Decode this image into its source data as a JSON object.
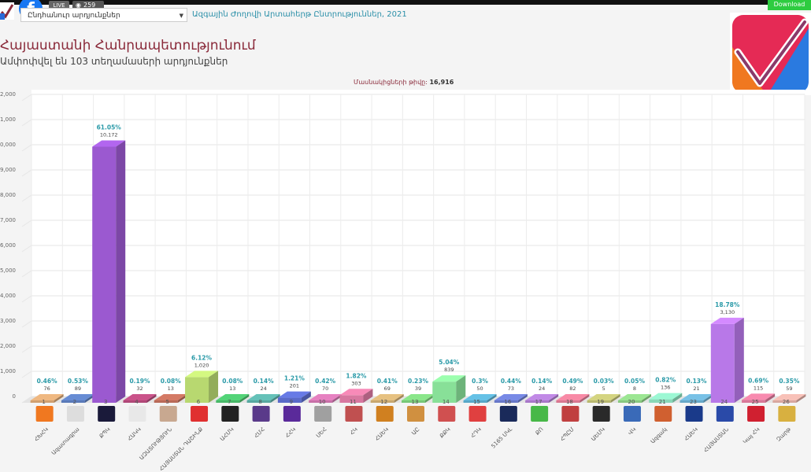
{
  "header": {
    "download_label": "Download",
    "live_label": "LIVE",
    "views": "259",
    "region_select": "Ընդհանուր արդյունքներ",
    "election_title": "Ազգային Ժողովի Արտահերթ Ընտրություններ, 2021",
    "main_title": "Հայաստանի Հանրապետությունում",
    "subtitle": "Ամփոփվել են 103 տեղամասերի արդյունքներ",
    "participants_label": "Մասնակիցների թիվը:",
    "participants_value": "16,916"
  },
  "colors": {
    "title": "#8a2a3a",
    "accent": "#2a8fa8"
  },
  "chart_data": {
    "type": "bar",
    "ylim": [
      0,
      12000
    ],
    "yticks": [
      "0",
      "1,000",
      "2,000",
      "3,000",
      "4,000",
      "5,000",
      "6,000",
      "7,000",
      "8,000",
      "9,000",
      "10,000",
      "11,000",
      "12,000"
    ],
    "grid": true,
    "parties": [
      {
        "num": "1",
        "name": "ՀԽՀԿ",
        "value": 76,
        "label": "76",
        "pct": "0.46%",
        "color": "#d0a070",
        "logo_color": "#f07820"
      },
      {
        "num": "2",
        "name": "Ազատագրա",
        "value": 89,
        "label": "89",
        "pct": "0.53%",
        "color": "#5a7ab8",
        "logo_color": "#dddddd"
      },
      {
        "num": "3",
        "name": "ՔՊԿ",
        "value": 10172,
        "label": "10,172",
        "pct": "61.05%",
        "color": "#9b59d0",
        "logo_color": "#1a1a3a"
      },
      {
        "num": "4",
        "name": "ՀԱԿԿ",
        "value": 32,
        "label": "32",
        "pct": "0.19%",
        "color": "#b04878",
        "logo_color": "#e8e8e8"
      },
      {
        "num": "5",
        "name": "ԱԶԱՏՈՒԹՅՈՒՆ",
        "value": 13,
        "label": "13",
        "pct": "0.08%",
        "color": "#b86a58",
        "logo_color": "#c8a890"
      },
      {
        "num": "6",
        "name": "ՀԱՅԱՍՏԱՆ ԴԱՇԻՆՔ",
        "value": 1020,
        "label": "1,020",
        "pct": "6.12%",
        "color": "#b8d870",
        "logo_color": "#e03030"
      },
      {
        "num": "7",
        "name": "ԱՀՄԿ",
        "value": 13,
        "label": "13",
        "pct": "0.08%",
        "color": "#48b868",
        "logo_color": "#222222"
      },
      {
        "num": "8",
        "name": "ՀՄՀ",
        "value": 24,
        "label": "24",
        "pct": "0.14%",
        "color": "#58a8a0",
        "logo_color": "#5a3a8a"
      },
      {
        "num": "9",
        "name": "ՀՀԿ",
        "value": 201,
        "label": "201",
        "pct": "1.21%",
        "color": "#5a6ac8",
        "logo_color": "#5a2a9a"
      },
      {
        "num": "10",
        "name": "ՍԵՀ",
        "value": 70,
        "label": "70",
        "pct": "0.42%",
        "color": "#c870a8",
        "logo_color": "#a0a0a0"
      },
      {
        "num": "11",
        "name": "ՀԿ",
        "value": 303,
        "label": "303",
        "pct": "1.82%",
        "color": "#d878a0",
        "logo_color": "#c05050"
      },
      {
        "num": "12",
        "name": "ՀԱԵԿ",
        "value": 69,
        "label": "69",
        "pct": "0.41%",
        "color": "#c8a870",
        "logo_color": "#d08020"
      },
      {
        "num": "13",
        "name": "ԱԸ",
        "value": 39,
        "label": "39",
        "pct": "0.23%",
        "color": "#78c878",
        "logo_color": "#d09040"
      },
      {
        "num": "14",
        "name": "ՔՔԿ",
        "value": 839,
        "label": "839",
        "pct": "5.04%",
        "color": "#88e098",
        "logo_color": "#d05050"
      },
      {
        "num": "15",
        "name": "ՀԴԿ",
        "value": 50,
        "label": "50",
        "pct": "0.3%",
        "color": "#58a8c8",
        "logo_color": "#e04040"
      },
      {
        "num": "16",
        "name": "5165 ՍԿԼ",
        "value": 73,
        "label": "73",
        "pct": "0.44%",
        "color": "#6878c8",
        "logo_color": "#1a2a5a"
      },
      {
        "num": "17",
        "name": "ՔՈ",
        "value": 24,
        "label": "24",
        "pct": "0.14%",
        "color": "#a878c8",
        "logo_color": "#48b848"
      },
      {
        "num": "18",
        "name": "ՀՊԸՄ",
        "value": 82,
        "label": "82",
        "pct": "0.49%",
        "color": "#d87890",
        "logo_color": "#c04040"
      },
      {
        "num": "19",
        "name": "ԱԵՄԿ",
        "value": 5,
        "label": "5",
        "pct": "0.03%",
        "color": "#b8b870",
        "logo_color": "#2a2a2a"
      },
      {
        "num": "20",
        "name": "ՎԿ",
        "value": 8,
        "label": "8",
        "pct": "0.05%",
        "color": "#88c880",
        "logo_color": "#3a6ab8"
      },
      {
        "num": "21",
        "name": "Ազգակ",
        "value": 136,
        "label": "136",
        "pct": "0.82%",
        "color": "#88d8b8",
        "logo_color": "#d06030"
      },
      {
        "num": "23",
        "name": "ՀԱԵԿ",
        "value": 21,
        "label": "21",
        "pct": "0.13%",
        "color": "#68a8c8",
        "logo_color": "#1a3a8a"
      },
      {
        "num": "24",
        "name": "ՀԱՅԱՍՏԱՆ",
        "value": 3130,
        "label": "3,130",
        "pct": "18.78%",
        "color": "#b878e8",
        "logo_color": "#2a4aa8"
      },
      {
        "num": "25",
        "name": "Կայ ՀԿ",
        "value": 115,
        "label": "115",
        "pct": "0.69%",
        "color": "#d87898",
        "logo_color": "#d02030"
      },
      {
        "num": "26",
        "name": "Զարթ",
        "value": 59,
        "label": "59",
        "pct": "0.35%",
        "color": "#d8a8a0",
        "logo_color": "#d8b040"
      }
    ]
  }
}
